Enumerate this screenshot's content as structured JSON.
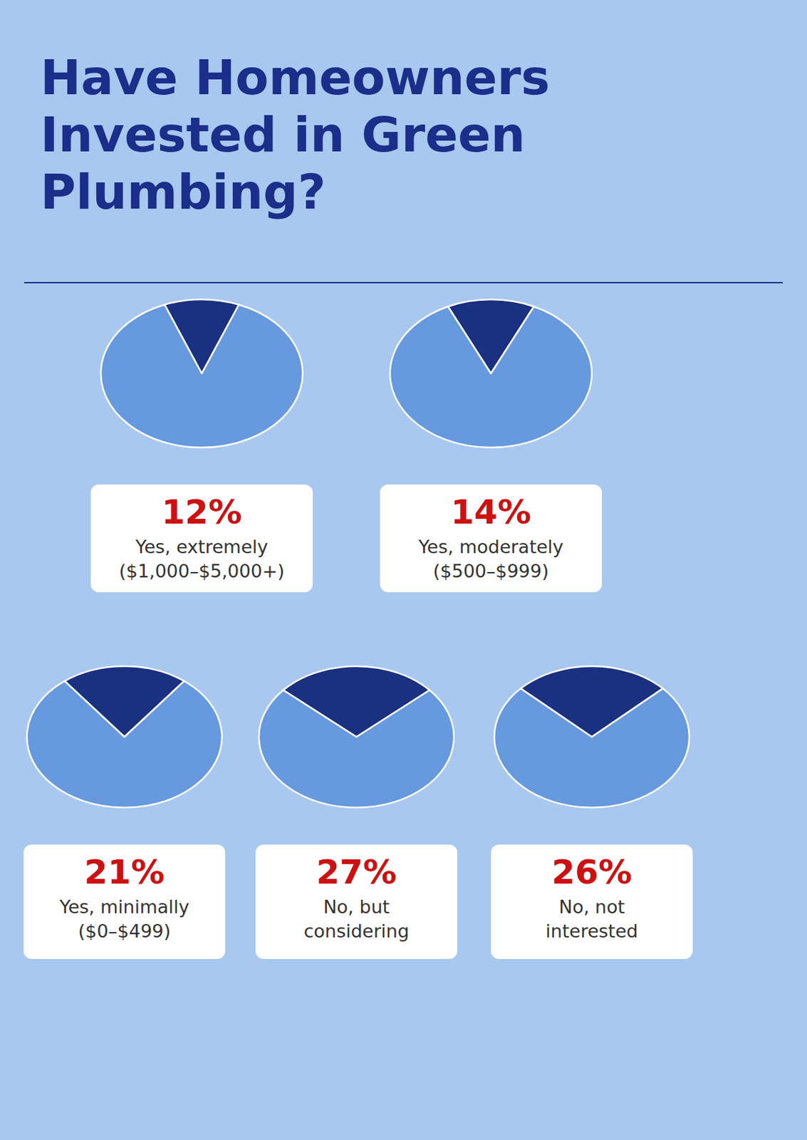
{
  "chart_data": [
    {
      "type": "pie",
      "title": "Have Homeowners\nInvested in Green\nPlumbing?",
      "categories": [
        "Yes, extremely\n($1,000–$5,000+)",
        null
      ],
      "values": [
        12,
        88
      ],
      "value_labels": [
        "12%",
        null
      ],
      "colors": [
        "#1a3080",
        "#6699dd"
      ],
      "data_labels": true
    },
    {
      "type": "pie",
      "categories": [
        "Yes, moderately\n($500–$999)",
        null
      ],
      "values": [
        14,
        86
      ],
      "value_labels": [
        "14%",
        null
      ],
      "colors": [
        "#1a3080",
        "#6699dd"
      ],
      "data_labels": true
    },
    {
      "type": "pie",
      "categories": [
        "Yes, minimally\n($0–$499)",
        null
      ],
      "values": [
        21,
        79
      ],
      "value_labels": [
        "21%",
        null
      ],
      "colors": [
        "#1a3080",
        "#6699dd"
      ],
      "data_labels": true
    },
    {
      "type": "pie",
      "categories": [
        "No, but\nconsidering",
        null
      ],
      "values": [
        27,
        73
      ],
      "value_labels": [
        "27%",
        null
      ],
      "colors": [
        "#1a3080",
        "#6699dd"
      ],
      "data_labels": true
    },
    {
      "type": "pie",
      "categories": [
        "No, not\ninterested",
        null
      ],
      "values": [
        26,
        74
      ],
      "value_labels": [
        "26%",
        null
      ],
      "colors": [
        "#1a3080",
        "#6699dd"
      ],
      "data_labels": true
    }
  ]
}
